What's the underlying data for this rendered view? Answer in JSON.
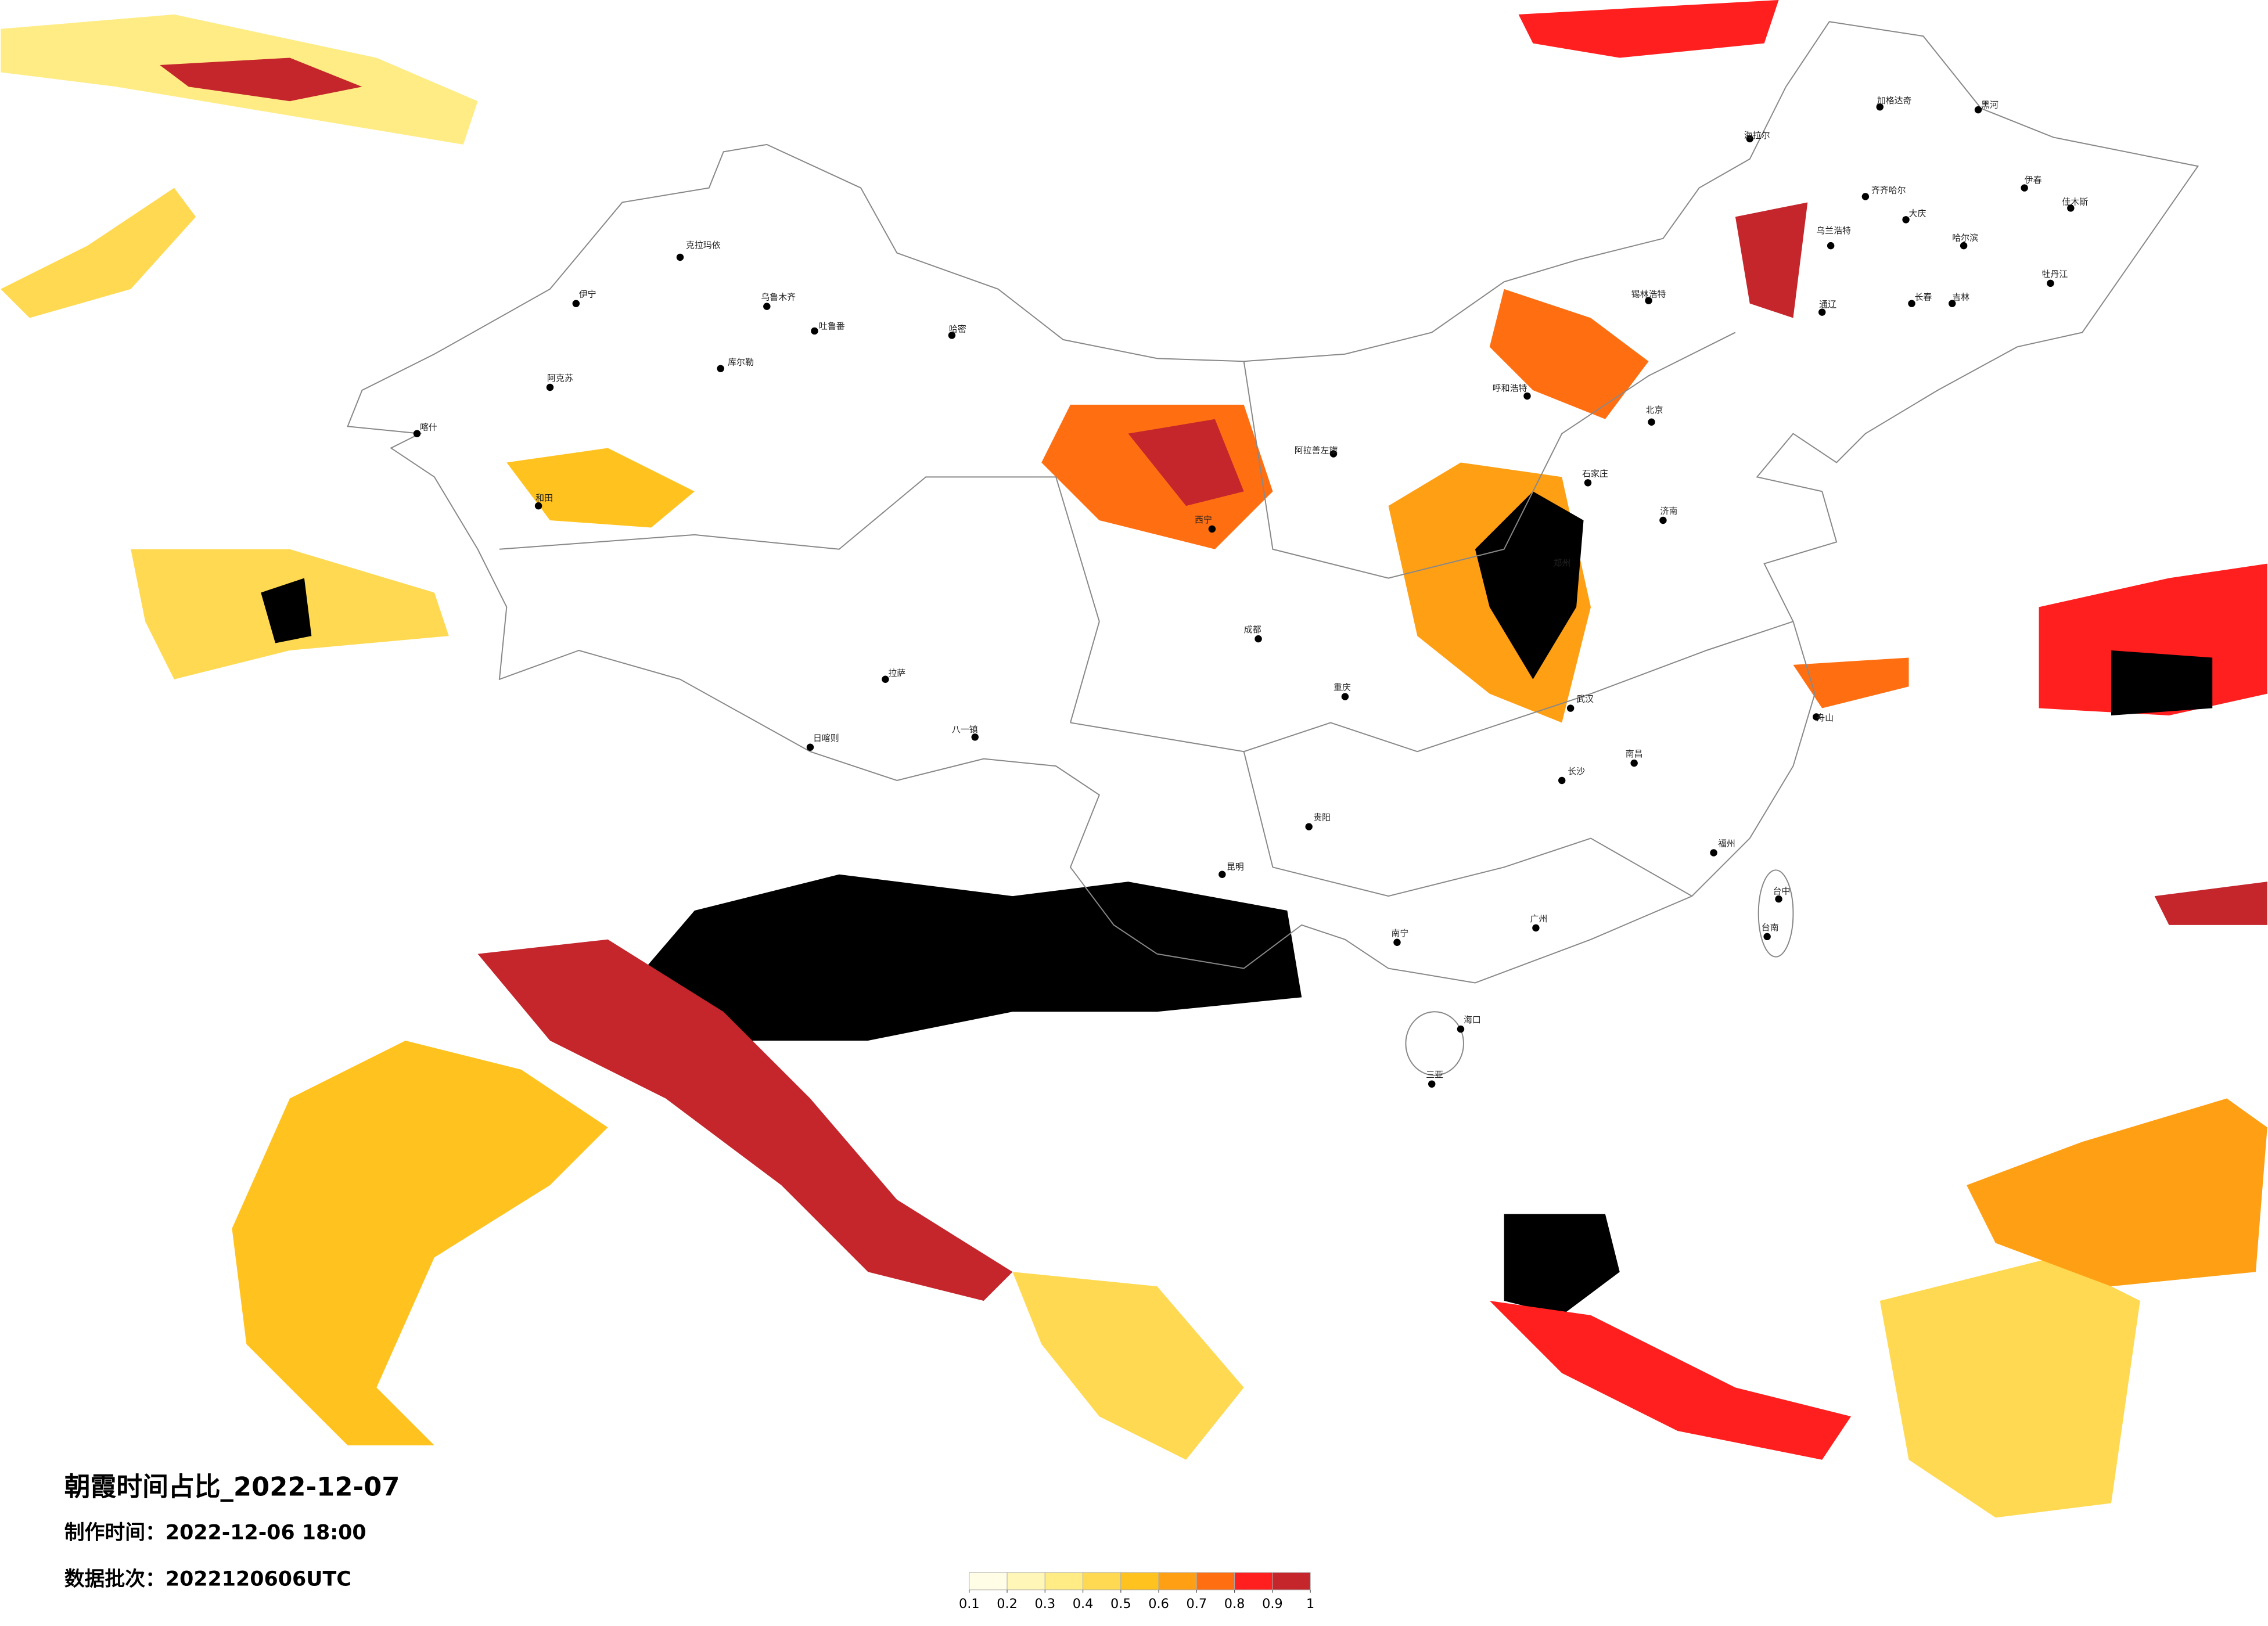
{
  "title": "朝霞时间占比_2022-12-07",
  "produced": "制作时间：2022-12-06 18:00",
  "batch": "数据批次：2022120606UTC",
  "colorbar": {
    "ticks": [
      0.1,
      0.2,
      0.3,
      0.4,
      0.5,
      0.6,
      0.7,
      0.8,
      0.9,
      1
    ],
    "colors": [
      "#fffde6",
      "#fff6b8",
      "#ffec85",
      "#ffd952",
      "#ffc21f",
      "#ff9f14",
      "#ff6f12",
      "#ff1f1f",
      "#c4262c"
    ]
  },
  "cities": [
    "北京",
    "乌鲁木齐",
    "伊宁",
    "阿克苏",
    "喀什",
    "和田",
    "哈密",
    "库尔勒",
    "吐鲁番",
    "克拉玛依",
    "拉萨",
    "日喀则",
    "八一镇",
    "西宁",
    "成都",
    "重庆",
    "昆明",
    "贵阳",
    "南宁",
    "广州",
    "海口",
    "三亚",
    "福州",
    "台中",
    "台南",
    "武汉",
    "长沙",
    "南昌",
    "郑州",
    "石家庄",
    "济南",
    "长春",
    "哈尔滨",
    "呼和浩特",
    "阿拉善左旗",
    "海拉尔",
    "齐齐哈尔",
    "大庆",
    "加格达奇",
    "黑河",
    "伊春",
    "佳木斯",
    "牡丹江",
    "锡林浩特",
    "通辽",
    "乌兰浩特",
    "舟山",
    "吉林"
  ]
}
